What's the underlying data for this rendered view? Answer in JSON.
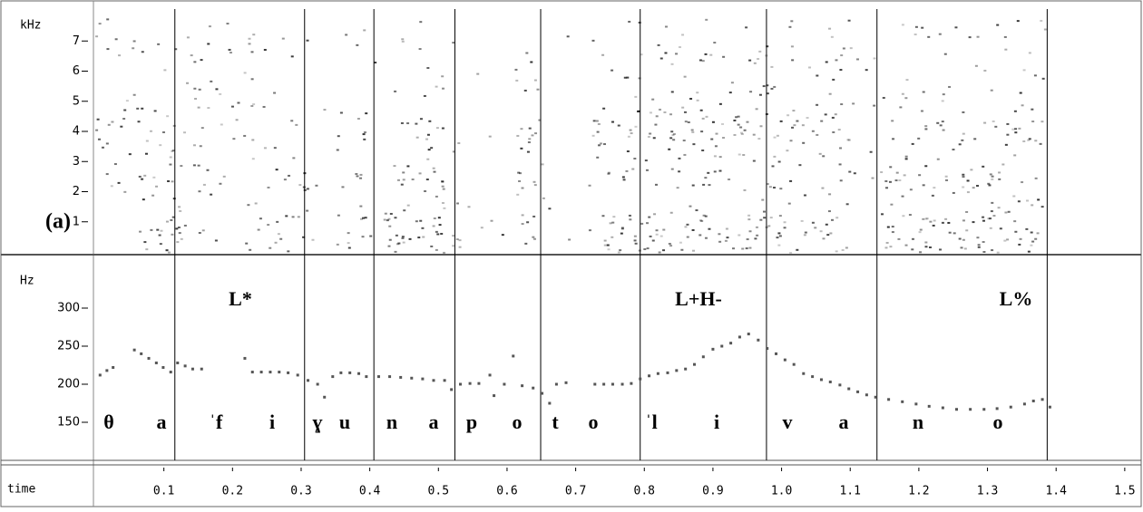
{
  "chart_data": [
    {
      "type": "spectrogram",
      "y_label": "kHz",
      "panel_label": "(a)",
      "ylim": [
        0,
        8
      ],
      "yticks": [
        1,
        2,
        3,
        4,
        5,
        6,
        7
      ]
    },
    {
      "type": "scatter",
      "y_label": "Hz",
      "x_label": "time",
      "color": "#555555",
      "xlim": [
        0,
        1.52
      ],
      "xticks": [
        0.1,
        0.2,
        0.3,
        0.4,
        0.5,
        0.6,
        0.7,
        0.8,
        0.9,
        {
          "value": 1,
          "label": "1.0"
        },
        1.1,
        1.2,
        1.3,
        1.4,
        1.5
      ],
      "ylim": [
        105,
        365
      ],
      "yticks": [
        150,
        200,
        250,
        300
      ],
      "boundaries": [
        0.116,
        0.305,
        0.406,
        0.524,
        0.649,
        0.794,
        0.978,
        1.139,
        1.387
      ],
      "segments": [
        "θ",
        "a",
        "ˈf",
        "i",
        "ɣ",
        "u",
        "n",
        "a",
        "p",
        "o",
        "t",
        "o",
        "ˈl",
        "i",
        "v",
        "a",
        "n",
        "o"
      ],
      "tones": [
        "L*",
        "L+H-",
        "L%"
      ],
      "x": [
        0.007,
        0.017,
        0.026,
        0.057,
        0.067,
        0.078,
        0.089,
        0.099,
        0.11,
        0.12,
        0.131,
        0.142,
        0.155,
        0.218,
        0.229,
        0.242,
        0.255,
        0.268,
        0.281,
        0.295,
        0.31,
        0.324,
        0.334,
        0.346,
        0.358,
        0.371,
        0.384,
        0.395,
        0.413,
        0.429,
        0.445,
        0.461,
        0.477,
        0.493,
        0.509,
        0.519,
        0.532,
        0.546,
        0.559,
        0.575,
        0.581,
        0.596,
        0.609,
        0.622,
        0.638,
        0.651,
        0.662,
        0.672,
        0.686,
        0.728,
        0.741,
        0.754,
        0.768,
        0.781,
        0.794,
        0.807,
        0.82,
        0.834,
        0.847,
        0.86,
        0.873,
        0.886,
        0.9,
        0.913,
        0.926,
        0.939,
        0.952,
        0.966,
        0.979,
        0.992,
        1.005,
        1.018,
        1.032,
        1.045,
        1.058,
        1.071,
        1.085,
        1.098,
        1.111,
        1.124,
        1.137,
        1.156,
        1.176,
        1.196,
        1.215,
        1.235,
        1.255,
        1.275,
        1.295,
        1.314,
        1.334,
        1.354,
        1.367,
        1.38,
        1.391
      ],
      "values": [
        212,
        218,
        222,
        245,
        240,
        234,
        228,
        222,
        216,
        228,
        224,
        220,
        220,
        234,
        216,
        216,
        216,
        216,
        215,
        212,
        205,
        200,
        183,
        210,
        215,
        215,
        214,
        210,
        210,
        210,
        209,
        208,
        207,
        205,
        205,
        193,
        200,
        201,
        201,
        212,
        185,
        200,
        237,
        198,
        195,
        188,
        175,
        200,
        202,
        200,
        200,
        200,
        200,
        201,
        207,
        211,
        214,
        215,
        218,
        220,
        226,
        236,
        246,
        250,
        254,
        262,
        266,
        258,
        247,
        240,
        232,
        226,
        214,
        210,
        206,
        203,
        199,
        194,
        190,
        186,
        183,
        180,
        177,
        174,
        171,
        169,
        167,
        167,
        167,
        168,
        170,
        174,
        178,
        180,
        170
      ]
    }
  ]
}
